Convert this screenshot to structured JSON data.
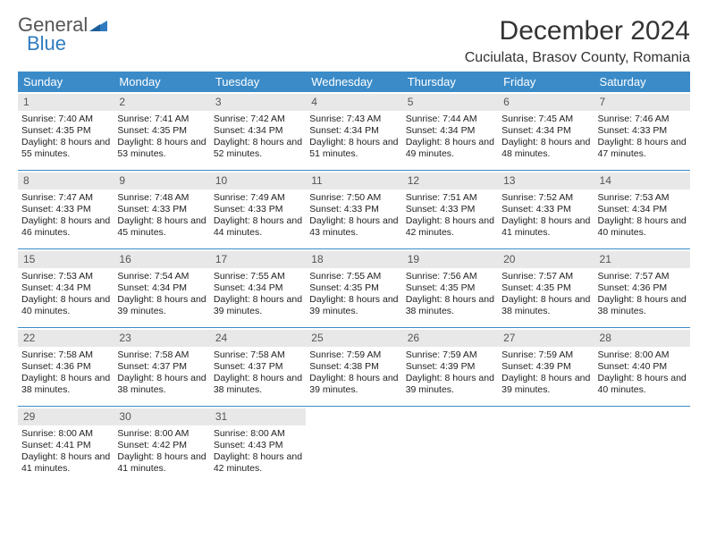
{
  "brand": {
    "line1": "General",
    "line2": "Blue"
  },
  "title": "December 2024",
  "location": "Cuciulata, Brasov County, Romania",
  "colors": {
    "header_bg": "#3b8bc8",
    "header_text": "#ffffff",
    "daynum_bg": "#e8e8e8",
    "rule": "#3b8bc8",
    "text": "#222222",
    "brand_gray": "#666666",
    "brand_blue": "#2f7bbf"
  },
  "day_names": [
    "Sunday",
    "Monday",
    "Tuesday",
    "Wednesday",
    "Thursday",
    "Friday",
    "Saturday"
  ],
  "days": [
    {
      "n": 1,
      "sr": "7:40 AM",
      "ss": "4:35 PM",
      "dl": "8 hours and 55 minutes."
    },
    {
      "n": 2,
      "sr": "7:41 AM",
      "ss": "4:35 PM",
      "dl": "8 hours and 53 minutes."
    },
    {
      "n": 3,
      "sr": "7:42 AM",
      "ss": "4:34 PM",
      "dl": "8 hours and 52 minutes."
    },
    {
      "n": 4,
      "sr": "7:43 AM",
      "ss": "4:34 PM",
      "dl": "8 hours and 51 minutes."
    },
    {
      "n": 5,
      "sr": "7:44 AM",
      "ss": "4:34 PM",
      "dl": "8 hours and 49 minutes."
    },
    {
      "n": 6,
      "sr": "7:45 AM",
      "ss": "4:34 PM",
      "dl": "8 hours and 48 minutes."
    },
    {
      "n": 7,
      "sr": "7:46 AM",
      "ss": "4:33 PM",
      "dl": "8 hours and 47 minutes."
    },
    {
      "n": 8,
      "sr": "7:47 AM",
      "ss": "4:33 PM",
      "dl": "8 hours and 46 minutes."
    },
    {
      "n": 9,
      "sr": "7:48 AM",
      "ss": "4:33 PM",
      "dl": "8 hours and 45 minutes."
    },
    {
      "n": 10,
      "sr": "7:49 AM",
      "ss": "4:33 PM",
      "dl": "8 hours and 44 minutes."
    },
    {
      "n": 11,
      "sr": "7:50 AM",
      "ss": "4:33 PM",
      "dl": "8 hours and 43 minutes."
    },
    {
      "n": 12,
      "sr": "7:51 AM",
      "ss": "4:33 PM",
      "dl": "8 hours and 42 minutes."
    },
    {
      "n": 13,
      "sr": "7:52 AM",
      "ss": "4:33 PM",
      "dl": "8 hours and 41 minutes."
    },
    {
      "n": 14,
      "sr": "7:53 AM",
      "ss": "4:34 PM",
      "dl": "8 hours and 40 minutes."
    },
    {
      "n": 15,
      "sr": "7:53 AM",
      "ss": "4:34 PM",
      "dl": "8 hours and 40 minutes."
    },
    {
      "n": 16,
      "sr": "7:54 AM",
      "ss": "4:34 PM",
      "dl": "8 hours and 39 minutes."
    },
    {
      "n": 17,
      "sr": "7:55 AM",
      "ss": "4:34 PM",
      "dl": "8 hours and 39 minutes."
    },
    {
      "n": 18,
      "sr": "7:55 AM",
      "ss": "4:35 PM",
      "dl": "8 hours and 39 minutes."
    },
    {
      "n": 19,
      "sr": "7:56 AM",
      "ss": "4:35 PM",
      "dl": "8 hours and 38 minutes."
    },
    {
      "n": 20,
      "sr": "7:57 AM",
      "ss": "4:35 PM",
      "dl": "8 hours and 38 minutes."
    },
    {
      "n": 21,
      "sr": "7:57 AM",
      "ss": "4:36 PM",
      "dl": "8 hours and 38 minutes."
    },
    {
      "n": 22,
      "sr": "7:58 AM",
      "ss": "4:36 PM",
      "dl": "8 hours and 38 minutes."
    },
    {
      "n": 23,
      "sr": "7:58 AM",
      "ss": "4:37 PM",
      "dl": "8 hours and 38 minutes."
    },
    {
      "n": 24,
      "sr": "7:58 AM",
      "ss": "4:37 PM",
      "dl": "8 hours and 38 minutes."
    },
    {
      "n": 25,
      "sr": "7:59 AM",
      "ss": "4:38 PM",
      "dl": "8 hours and 39 minutes."
    },
    {
      "n": 26,
      "sr": "7:59 AM",
      "ss": "4:39 PM",
      "dl": "8 hours and 39 minutes."
    },
    {
      "n": 27,
      "sr": "7:59 AM",
      "ss": "4:39 PM",
      "dl": "8 hours and 39 minutes."
    },
    {
      "n": 28,
      "sr": "8:00 AM",
      "ss": "4:40 PM",
      "dl": "8 hours and 40 minutes."
    },
    {
      "n": 29,
      "sr": "8:00 AM",
      "ss": "4:41 PM",
      "dl": "8 hours and 41 minutes."
    },
    {
      "n": 30,
      "sr": "8:00 AM",
      "ss": "4:42 PM",
      "dl": "8 hours and 41 minutes."
    },
    {
      "n": 31,
      "sr": "8:00 AM",
      "ss": "4:43 PM",
      "dl": "8 hours and 42 minutes."
    }
  ],
  "labels": {
    "sunrise": "Sunrise:",
    "sunset": "Sunset:",
    "daylight": "Daylight:"
  },
  "layout": {
    "start_weekday": 0,
    "cols": 7,
    "rows": 5
  }
}
